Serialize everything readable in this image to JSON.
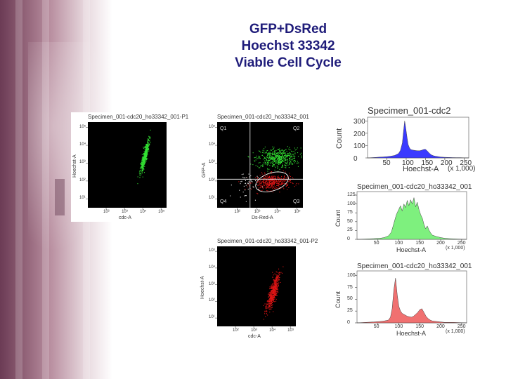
{
  "title_lines": [
    "GFP+DsRed",
    "Hoechst 33342",
    "Viable Cell Cycle"
  ],
  "colors": {
    "title": "#1f1c7a",
    "green_events": "#32e032",
    "red_events": "#e01515",
    "blue_hist": "#3a3aff",
    "green_hist": "#7ef07e",
    "red_hist": "#f07070",
    "plot_background": "#000000"
  },
  "chart_data": [
    {
      "type": "scatter",
      "id": "dot-gfp",
      "title": "Specimen_001-cdc20_ho33342_001-P1",
      "xlabel": "cdc-A",
      "ylabel": "Hoechst-A",
      "xticks": [
        "10²",
        "10³",
        "10⁴",
        "10⁵"
      ],
      "yticks": [
        "10¹",
        "10²",
        "10³",
        "10⁴",
        "10⁵"
      ],
      "xlim": [
        1,
        5.3
      ],
      "ylim": [
        0.5,
        5.3
      ],
      "log_axes": true,
      "populations": [
        {
          "color": "green",
          "x_center": 4.1,
          "y_center": 3.4,
          "x_sd": 0.06,
          "y_sd": 0.45,
          "tilt": 0.22,
          "count": 520
        }
      ]
    },
    {
      "type": "scatter",
      "id": "dot-gate",
      "title": "Specimen_001-cdc20_ho33342_001",
      "xlabel": "Ds-Red-A",
      "ylabel": "GFP-A",
      "xticks": [
        "10²",
        "10³",
        "10⁴",
        "10⁵"
      ],
      "yticks": [
        "10¹",
        "10²",
        "10³",
        "10⁴",
        "10⁵"
      ],
      "xlim": [
        1,
        5.3
      ],
      "ylim": [
        0.5,
        5.3
      ],
      "log_axes": true,
      "gate_labels": [
        "Q1",
        "Q2",
        "Q3",
        "Q4"
      ],
      "quadrant_x": 2.65,
      "quadrant_y": 2.1,
      "populations": [
        {
          "color": "green",
          "x_center": 4.0,
          "y_center": 3.3,
          "x_sd": 0.5,
          "y_sd": 0.28,
          "tilt": 0.3,
          "count": 520
        },
        {
          "color": "red",
          "x_center": 3.75,
          "y_center": 1.95,
          "x_sd": 0.45,
          "y_sd": 0.22,
          "tilt": 0.25,
          "count": 420
        },
        {
          "color": "white",
          "x_center": 2.4,
          "y_center": 1.8,
          "x_sd": 0.3,
          "y_sd": 0.4,
          "tilt": 0.0,
          "count": 45
        }
      ]
    },
    {
      "type": "scatter",
      "id": "dot-red",
      "title": "Specimen_001-cdc20_ho33342_001-P2",
      "xlabel": "cdc-A",
      "ylabel": "Hoechst-A",
      "xticks": [
        "10²",
        "10³",
        "10⁴",
        "10⁵"
      ],
      "yticks": [
        "10¹",
        "10²",
        "10³",
        "10⁴",
        "10⁵"
      ],
      "xlim": [
        1,
        5.3
      ],
      "ylim": [
        0.5,
        5.3
      ],
      "log_axes": true,
      "populations": [
        {
          "color": "red",
          "x_center": 4.05,
          "y_center": 2.6,
          "x_sd": 0.1,
          "y_sd": 0.55,
          "tilt": 0.25,
          "count": 560
        }
      ]
    },
    {
      "type": "area",
      "id": "hist-blue",
      "title": "Specimen_001-cdc2",
      "xlabel": "Hoechst-A",
      "ylabel": "Count",
      "x_multiplier": "(x 1,000)",
      "xticks": [
        50,
        100,
        150,
        200,
        250
      ],
      "yticks": [
        0,
        100,
        200,
        300
      ],
      "xlim": [
        0,
        262
      ],
      "ylim": [
        0,
        330
      ],
      "x": [
        0,
        10,
        20,
        30,
        40,
        50,
        60,
        70,
        80,
        85,
        90,
        93,
        96,
        99,
        102,
        105,
        108,
        111,
        114,
        117,
        120,
        125,
        130,
        135,
        140,
        145,
        150,
        155,
        160,
        165,
        170,
        175,
        180,
        185,
        190,
        200,
        210,
        220,
        230,
        240,
        250,
        262
      ],
      "values": [
        0,
        2,
        4,
        6,
        8,
        10,
        14,
        20,
        35,
        60,
        120,
        210,
        300,
        240,
        170,
        110,
        85,
        70,
        66,
        64,
        62,
        60,
        58,
        58,
        62,
        68,
        70,
        55,
        38,
        25,
        18,
        14,
        12,
        9,
        7,
        5,
        4,
        3,
        2,
        2,
        1,
        0
      ]
    },
    {
      "type": "area",
      "id": "hist-green",
      "title": "Specimen_001-cdc20_ho33342_001",
      "xlabel": "Hoechst-A",
      "ylabel": "Count",
      "x_multiplier": "(x 1,000)",
      "xticks": [
        50,
        100,
        150,
        200,
        250
      ],
      "yticks": [
        0,
        25,
        50,
        75,
        100,
        125
      ],
      "xlim": [
        0,
        262
      ],
      "ylim": [
        0,
        135
      ],
      "x": [
        0,
        20,
        40,
        55,
        65,
        75,
        82,
        88,
        94,
        100,
        104,
        108,
        112,
        116,
        120,
        124,
        128,
        132,
        136,
        140,
        144,
        148,
        152,
        156,
        160,
        164,
        168,
        172,
        176,
        180,
        190,
        200,
        210,
        220,
        240,
        262
      ],
      "values": [
        0,
        1,
        2,
        3,
        5,
        10,
        20,
        45,
        70,
        85,
        95,
        80,
        100,
        90,
        110,
        95,
        112,
        100,
        118,
        92,
        105,
        85,
        70,
        60,
        42,
        30,
        38,
        26,
        18,
        12,
        8,
        5,
        3,
        2,
        1,
        0
      ]
    },
    {
      "type": "area",
      "id": "hist-red",
      "title": "Specimen_001-cdc20_ho33342_001",
      "xlabel": "Hoechst-A",
      "ylabel": "Count",
      "x_multiplier": "(x 1,000)",
      "xticks": [
        50,
        100,
        150,
        200,
        250
      ],
      "yticks": [
        0,
        25,
        50,
        75,
        100
      ],
      "xlim": [
        0,
        262
      ],
      "ylim": [
        0,
        110
      ],
      "x": [
        0,
        20,
        40,
        55,
        65,
        75,
        80,
        84,
        88,
        92,
        96,
        100,
        104,
        108,
        112,
        116,
        120,
        125,
        130,
        135,
        140,
        145,
        150,
        155,
        160,
        165,
        170,
        175,
        180,
        190,
        200,
        210,
        230,
        262
      ],
      "values": [
        0,
        1,
        2,
        3,
        4,
        6,
        12,
        30,
        70,
        95,
        60,
        35,
        25,
        20,
        18,
        16,
        14,
        13,
        12,
        14,
        18,
        22,
        28,
        30,
        22,
        14,
        9,
        6,
        4,
        3,
        2,
        1,
        1,
        0
      ]
    }
  ]
}
